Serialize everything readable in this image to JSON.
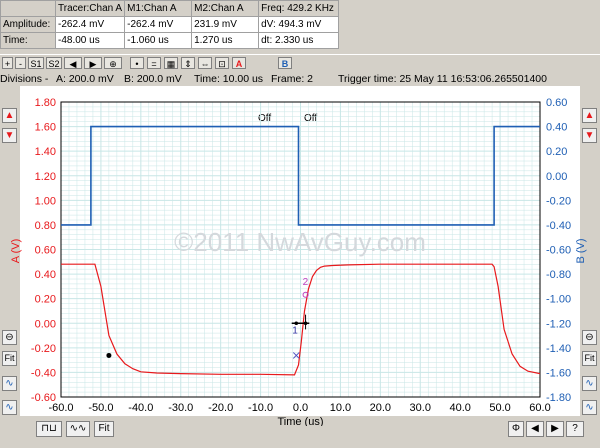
{
  "measurements": {
    "headers": [
      "",
      "Tracer:Chan A",
      "M1:Chan A",
      "M2:Chan A",
      "Freq: 429.2 KHz"
    ],
    "rows": [
      [
        "Amplitude:",
        "-262.4 mV",
        "-262.4 mV",
        "231.9 mV",
        "dV: 494.3 mV"
      ],
      [
        "Time:",
        "-48.00 us",
        "-1.060 us",
        "1.270 us",
        "dt: 2.330 us"
      ]
    ]
  },
  "toolbar": {
    "plus": "+",
    "minus": "-",
    "s1": "S1",
    "s2": "S2",
    "a_off": "Off",
    "b_off": "Off"
  },
  "status": {
    "divisions": "Divisions -",
    "a_div": "A: 200.0 mV",
    "b_div": "B: 200.0 mV",
    "time": "Time: 10.00 us",
    "frame": "Frame: 2",
    "trigger": "Trigger time: 25 May 11 16:53:06.265501400"
  },
  "watermark": "©2011 NwAvGuy.com",
  "side": {
    "fit_left": "Fit",
    "fit_right": "Fit"
  },
  "bottom": {
    "fit": "Fit"
  },
  "colors": {
    "chan_a": "#e8191c",
    "chan_b": "#1f5fb4",
    "grid": "#c8e6e6",
    "bg_gray": "#d4d0c8"
  },
  "icons": [
    "up-arrow-icon",
    "down-arrow-icon",
    "target-icon",
    "square-wave-icon",
    "sine-wave-icon",
    "phi-icon",
    "back-arrow-icon",
    "forward-arrow-icon",
    "help-icon"
  ],
  "chart_data": {
    "type": "line",
    "x_label": "Time (us)",
    "y_left_label": "A (V)",
    "y_right_label": "B (V)",
    "xlim": [
      -60,
      60
    ],
    "ylim_left": [
      -0.6,
      1.8
    ],
    "ylim_right": [
      -1.8,
      0.6
    ],
    "x_ticks": [
      "-60.0",
      "-50.0",
      "-40.0",
      "-30.0",
      "-20.0",
      "-10.0",
      "0.0",
      "10.0",
      "20.0",
      "30.0",
      "40.0",
      "50.0",
      "60.0"
    ],
    "y_left_ticks": [
      "1.80",
      "1.60",
      "1.40",
      "1.20",
      "1.00",
      "0.80",
      "0.60",
      "0.40",
      "0.20",
      "0.00",
      "-0.20",
      "-0.40",
      "-0.60"
    ],
    "y_right_ticks": [
      "0.60",
      "0.40",
      "0.20",
      "0.00",
      "-0.20",
      "-0.40",
      "-0.60",
      "-0.80",
      "-1.00",
      "-1.20",
      "-1.40",
      "-1.60",
      "-1.80"
    ],
    "grid": true,
    "markers": {
      "m1": "1",
      "m2": "2"
    },
    "series": [
      {
        "name": "A",
        "axis": "left",
        "x": [
          -60,
          -51.5,
          -50,
          -48,
          -46,
          -44,
          -42,
          -40,
          -36,
          -30,
          -20,
          -10,
          -1.5,
          -0.5,
          0.2,
          1,
          2,
          3,
          4,
          5,
          6,
          8,
          12,
          20,
          30,
          40,
          48,
          48.5,
          49.5,
          51,
          53,
          55,
          57,
          60
        ],
        "y": [
          0.48,
          0.48,
          0.3,
          -0.1,
          -0.25,
          -0.33,
          -0.37,
          -0.395,
          -0.405,
          -0.41,
          -0.415,
          -0.415,
          -0.42,
          -0.34,
          -0.15,
          0.1,
          0.28,
          0.38,
          0.43,
          0.455,
          0.465,
          0.47,
          0.475,
          0.48,
          0.48,
          0.48,
          0.48,
          0.46,
          0.3,
          -0.05,
          -0.25,
          -0.35,
          -0.39,
          -0.41
        ]
      },
      {
        "name": "B",
        "axis": "right",
        "x": [
          -60,
          -52.5,
          -52.5,
          -0.5,
          -0.5,
          48.5,
          48.5,
          60
        ],
        "y": [
          -0.4,
          -0.4,
          0.4,
          0.4,
          -0.4,
          -0.4,
          0.4,
          0.4
        ]
      }
    ]
  }
}
